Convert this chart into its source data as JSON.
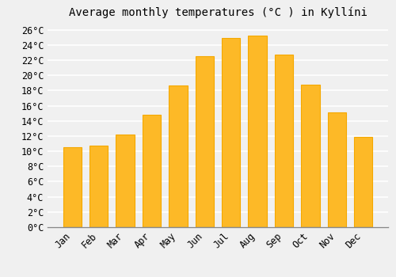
{
  "title": "Average monthly temperatures (°C ) in Kyllíni",
  "months": [
    "Jan",
    "Feb",
    "Mar",
    "Apr",
    "May",
    "Jun",
    "Jul",
    "Aug",
    "Sep",
    "Oct",
    "Nov",
    "Dec"
  ],
  "values": [
    10.5,
    10.7,
    12.2,
    14.8,
    18.7,
    22.5,
    24.9,
    25.2,
    22.7,
    18.8,
    15.1,
    11.9
  ],
  "bar_color": "#FDB927",
  "bar_edge_color": "#F5A800",
  "background_color": "#f0f0f0",
  "grid_color": "#ffffff",
  "ylim": [
    0,
    27
  ],
  "yticks": [
    0,
    2,
    4,
    6,
    8,
    10,
    12,
    14,
    16,
    18,
    20,
    22,
    24,
    26
  ],
  "title_fontsize": 10,
  "tick_fontsize": 8.5,
  "font_family": "monospace"
}
